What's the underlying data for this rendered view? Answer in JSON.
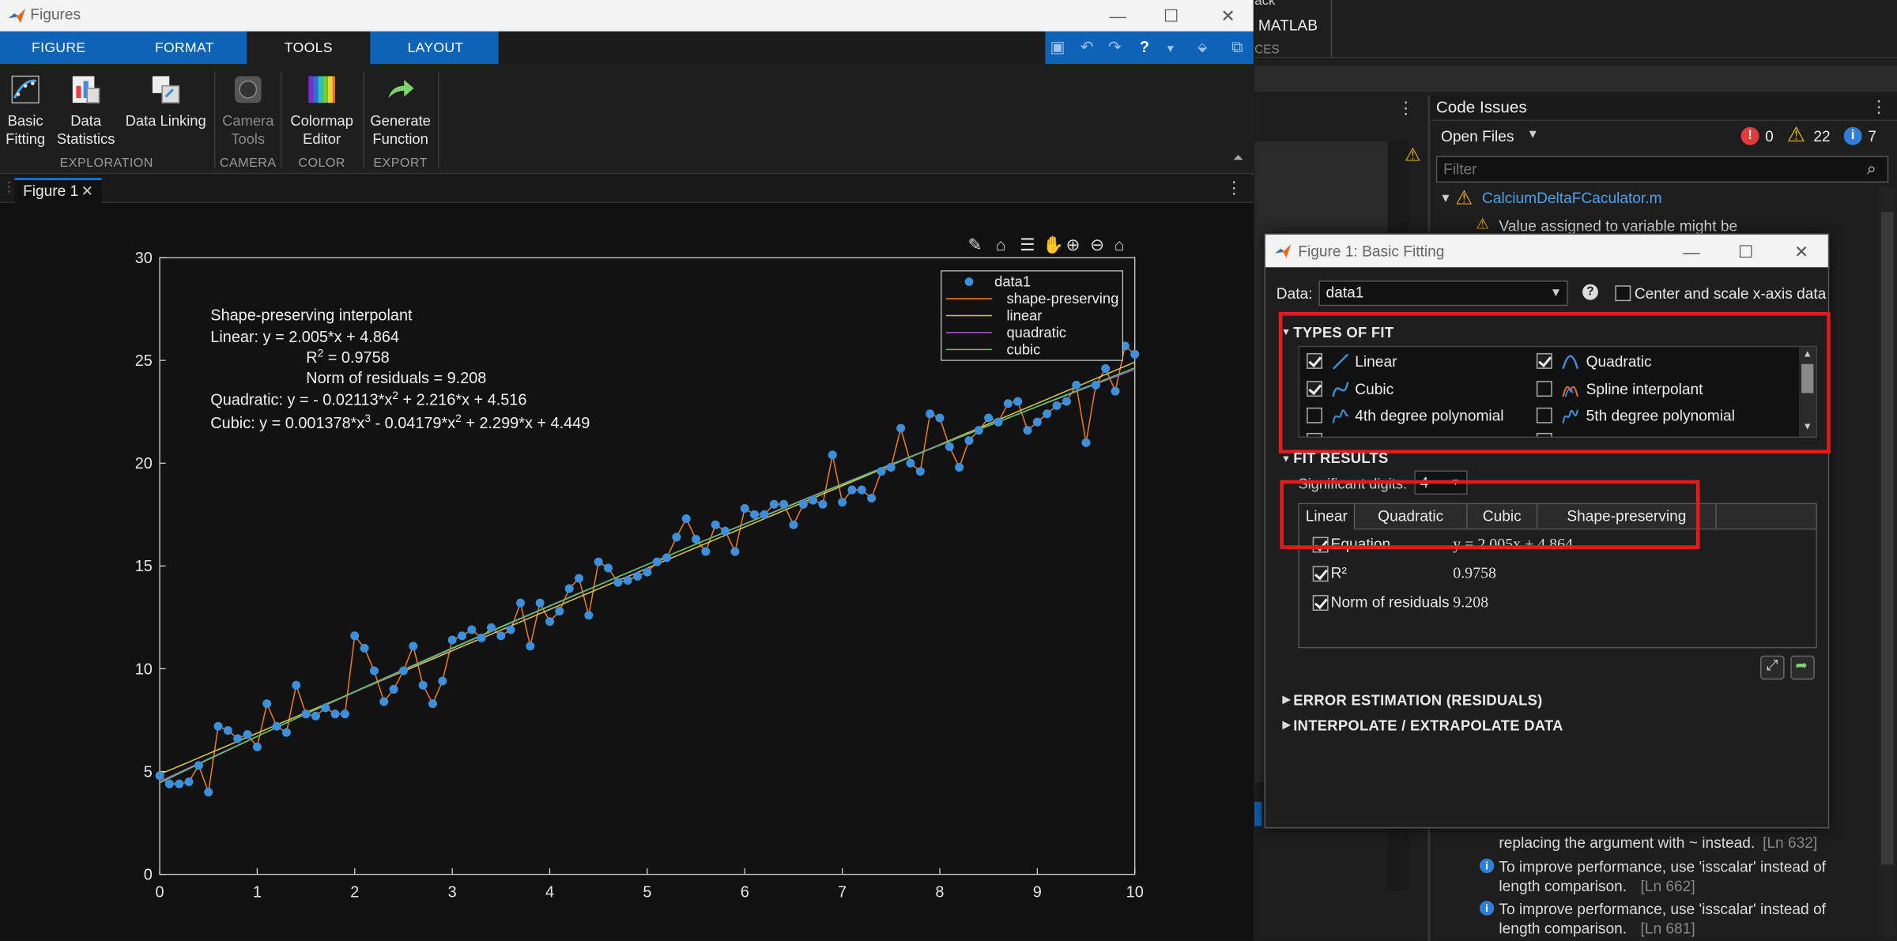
{
  "window": {
    "title": "Figures",
    "minimize": "—",
    "maximize": "☐",
    "close": "✕"
  },
  "ribbon_tabs": [
    "FIGURE",
    "FORMAT",
    "TOOLS",
    "LAYOUT"
  ],
  "ribbon": {
    "basic_fitting": [
      "Basic",
      "Fitting"
    ],
    "data_statistics": [
      "Data",
      "Statistics"
    ],
    "data_linking": "Data Linking",
    "camera_tools": [
      "Camera",
      "Tools"
    ],
    "colormap_editor": [
      "Colormap",
      "Editor"
    ],
    "generate_function": [
      "Generate",
      "Function"
    ],
    "groups": [
      "EXPLORATION",
      "CAMERA",
      "COLOR",
      "EXPORT"
    ]
  },
  "doc_tab": "Figure 1",
  "chart_data": {
    "type": "scatter",
    "xlim": [
      0,
      10
    ],
    "ylim": [
      0,
      30
    ],
    "xticks": [
      "0",
      "1",
      "2",
      "3",
      "4",
      "5",
      "6",
      "7",
      "8",
      "9",
      "10"
    ],
    "yticks": [
      "0",
      "5",
      "10",
      "15",
      "20",
      "25",
      "30"
    ],
    "legend_placement": "top-right",
    "legend": [
      "data1",
      "shape-preserving",
      "linear",
      "quadratic",
      "cubic"
    ],
    "colors": {
      "data": "#3b8fdb",
      "shape": "#e87b26",
      "linear": "#d8c84a",
      "quadratic": "#9b59d0",
      "cubic": "#5cc95c"
    },
    "annotation": {
      "line1": "Shape-preserving  interpolant",
      "line2": "Linear:    y  =  2.005*x  +  4.864",
      "line3_r2": "R",
      "line3_sup": "2",
      "line3_rest": "  =  0.9758",
      "line4": "Norm  of  residuals  =  9.208",
      "quad_a": "Quadratic:   y  =  -  0.02113*x",
      "quad_sup": "2",
      "quad_b": "  +  2.216*x  +  4.516",
      "cub_a": "Cubic:   y  =  0.001378*x",
      "cub_sup1": "3",
      "cub_b": "  -  0.04179*x",
      "cub_sup2": "2",
      "cub_c": "  +  2.299*x  +  4.449"
    },
    "x": [
      0,
      0.1,
      0.2,
      0.3,
      0.4,
      0.5,
      0.6,
      0.7,
      0.8,
      0.9,
      1.0,
      1.1,
      1.2,
      1.3,
      1.4,
      1.5,
      1.6,
      1.7,
      1.8,
      1.9,
      2.0,
      2.1,
      2.2,
      2.3,
      2.4,
      2.5,
      2.6,
      2.7,
      2.8,
      2.9,
      3.0,
      3.1,
      3.2,
      3.3,
      3.4,
      3.5,
      3.6,
      3.7,
      3.8,
      3.9,
      4.0,
      4.1,
      4.2,
      4.3,
      4.4,
      4.5,
      4.6,
      4.7,
      4.8,
      4.9,
      5.0,
      5.1,
      5.2,
      5.3,
      5.4,
      5.5,
      5.6,
      5.7,
      5.8,
      5.9,
      6.0,
      6.1,
      6.2,
      6.3,
      6.4,
      6.5,
      6.6,
      6.7,
      6.8,
      6.9,
      7.0,
      7.1,
      7.2,
      7.3,
      7.4,
      7.5,
      7.6,
      7.7,
      7.8,
      7.9,
      8.0,
      8.1,
      8.2,
      8.3,
      8.4,
      8.5,
      8.6,
      8.7,
      8.8,
      8.9,
      9.0,
      9.1,
      9.2,
      9.3,
      9.4,
      9.5,
      9.6,
      9.7,
      9.8,
      9.9,
      10.0
    ],
    "y": [
      4.8,
      4.4,
      4.4,
      4.5,
      5.3,
      4.0,
      7.2,
      7.0,
      6.6,
      6.8,
      6.2,
      8.3,
      7.2,
      6.9,
      9.2,
      7.8,
      7.7,
      8.1,
      7.8,
      7.8,
      11.6,
      11.0,
      9.9,
      8.4,
      9.0,
      9.9,
      11.1,
      9.2,
      8.3,
      9.4,
      11.4,
      11.6,
      11.9,
      11.5,
      12.0,
      11.6,
      11.9,
      13.2,
      11.1,
      13.2,
      12.3,
      12.8,
      13.9,
      14.4,
      12.6,
      15.2,
      14.9,
      14.2,
      14.3,
      14.5,
      14.7,
      15.2,
      15.4,
      16.4,
      17.3,
      16.3,
      15.7,
      17.0,
      16.7,
      15.7,
      17.8,
      17.5,
      17.5,
      18.0,
      18.0,
      17.0,
      18.0,
      18.2,
      18.0,
      20.4,
      18.1,
      18.7,
      18.7,
      18.3,
      19.6,
      19.8,
      21.7,
      20.0,
      19.6,
      22.4,
      22.2,
      20.8,
      19.8,
      21.1,
      21.6,
      22.2,
      22.0,
      22.9,
      23.0,
      21.6,
      22.0,
      22.4,
      22.8,
      23.0,
      23.8,
      21.0,
      23.8,
      24.6,
      23.5,
      25.7,
      25.3
    ]
  },
  "code_issues": {
    "title": "Code Issues",
    "filter_scope": "Open Files",
    "errors": "0",
    "warnings": "22",
    "infos": "7",
    "filter_placeholder": "Filter",
    "file": "CalciumDeltaFCaculator.m",
    "msg_top": "Value assigned to variable might be",
    "msg1a": "replacing the argument with ~ instead.",
    "msg1b": "[Ln 632]",
    "msg2a": "To improve performance, use 'isscalar' instead of",
    "msg2b": "length comparison.",
    "msg2c": "[Ln 662]",
    "msg3a": "To improve performance, use 'isscalar' instead of",
    "msg3b": "length comparison.",
    "msg3c": "[Ln 681]",
    "bg_text1": "MATLAB",
    "bg_text2": "CES",
    "bg_text3": "ack"
  },
  "dialog": {
    "title": "Figure 1: Basic Fitting",
    "data_label": "Data:",
    "data_value": "data1",
    "help": "?",
    "center_scale": "Center and scale x-axis data",
    "types_of_fit": "TYPES OF FIT",
    "fits": {
      "linear": "Linear",
      "quadratic": "Quadratic",
      "cubic": "Cubic",
      "spline": "Spline interpolant",
      "deg4": "4th degree polynomial",
      "deg5": "5th degree polynomial"
    },
    "fit_results": "FIT RESULTS",
    "sig_digits": "Significant digits:",
    "sig_value": "4",
    "result_tabs": [
      "Linear",
      "Quadratic",
      "Cubic",
      "Shape-preserving"
    ],
    "equation_label": "Equation",
    "equation_value": "y = 2.005x + 4.864",
    "r2_label": "R²",
    "r2_value": "0.9758",
    "norm_label": "Norm of residuals",
    "norm_value": "9.208",
    "error_est": "ERROR ESTIMATION (RESIDUALS)",
    "interp": "INTERPOLATE / EXTRAPOLATE DATA"
  }
}
